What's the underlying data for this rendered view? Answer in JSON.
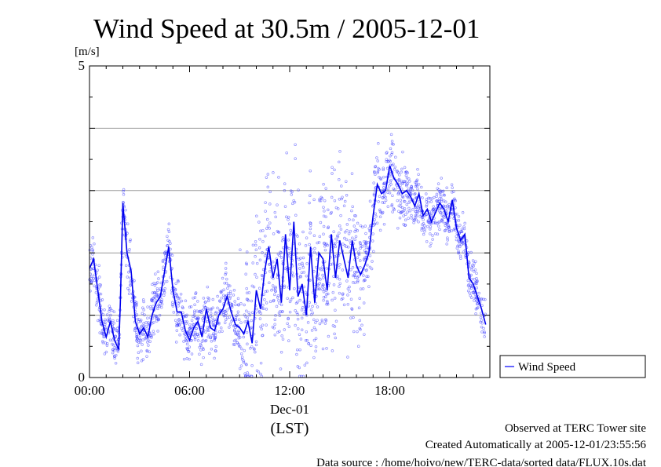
{
  "chart_data": {
    "type": "scatter",
    "title": "Wind Speed at 30.5m / 2005-12-01",
    "ylabel": "[m/s]",
    "xlabel": "(LST)",
    "date_label": "Dec-01",
    "ylim": [
      0,
      5
    ],
    "y_ticks": [
      "0",
      "5"
    ],
    "x_ticks": [
      "00:00",
      "06:00",
      "12:00",
      "18:00"
    ],
    "grid": true,
    "legend_position": "lower-right, outside plot",
    "color": "#3333ff",
    "series": [
      {
        "name": "Wind Speed",
        "x_hours": [
          0.0,
          0.25,
          0.5,
          0.75,
          1.0,
          1.25,
          1.5,
          1.75,
          1.85,
          2.0,
          2.25,
          2.5,
          2.75,
          3.0,
          3.25,
          3.5,
          3.75,
          4.0,
          4.25,
          4.5,
          4.75,
          5.0,
          5.25,
          5.5,
          5.75,
          6.0,
          6.25,
          6.5,
          6.75,
          7.0,
          7.25,
          7.5,
          7.75,
          8.0,
          8.25,
          8.5,
          8.75,
          9.0,
          9.25,
          9.5,
          9.75,
          10.0,
          10.25,
          10.5,
          10.75,
          11.0,
          11.25,
          11.5,
          11.75,
          12.0,
          12.25,
          12.5,
          12.75,
          13.0,
          13.25,
          13.5,
          13.75,
          14.0,
          14.25,
          14.5,
          14.75,
          15.0,
          15.25,
          15.5,
          15.75,
          16.0,
          16.25,
          16.5,
          16.75,
          17.0,
          17.25,
          17.5,
          17.75,
          18.0,
          18.25,
          18.5,
          18.75,
          19.0,
          19.25,
          19.5,
          19.75,
          20.0,
          20.25,
          20.5,
          20.75,
          21.0,
          21.25,
          21.5,
          21.75,
          22.0,
          22.25,
          22.5,
          22.75,
          23.0,
          23.25,
          23.5,
          23.75
        ],
        "y": [
          1.75,
          1.9,
          1.4,
          0.9,
          0.65,
          0.9,
          0.6,
          0.45,
          1.2,
          2.8,
          2.0,
          1.7,
          0.9,
          0.7,
          0.8,
          0.65,
          1.0,
          1.2,
          1.3,
          1.7,
          2.1,
          1.4,
          1.05,
          1.05,
          0.75,
          0.6,
          0.8,
          0.9,
          0.65,
          1.1,
          0.8,
          0.75,
          1.0,
          1.1,
          1.3,
          1.05,
          0.85,
          0.8,
          0.7,
          0.9,
          0.55,
          1.4,
          1.1,
          1.7,
          2.1,
          1.6,
          1.9,
          1.2,
          2.3,
          1.4,
          2.5,
          1.3,
          1.5,
          1.0,
          2.1,
          1.2,
          2.0,
          1.9,
          1.4,
          2.3,
          1.6,
          2.2,
          1.9,
          1.6,
          2.2,
          1.8,
          1.65,
          1.8,
          2.0,
          2.6,
          3.1,
          2.95,
          3.0,
          3.4,
          3.2,
          3.1,
          2.95,
          3.0,
          2.9,
          2.75,
          2.95,
          2.6,
          2.7,
          2.5,
          2.65,
          2.8,
          2.7,
          2.5,
          2.85,
          2.4,
          2.2,
          2.3,
          1.6,
          1.5,
          1.3,
          1.1,
          0.85
        ]
      }
    ]
  },
  "notes": {
    "line1": "Observed at TERC Tower site",
    "line2": "Created Automatically at 2005-12-01/23:55:56",
    "line3": "Data source : /home/hoivo/new/TERC-data/sorted  data/FLUX.10s.dat"
  }
}
